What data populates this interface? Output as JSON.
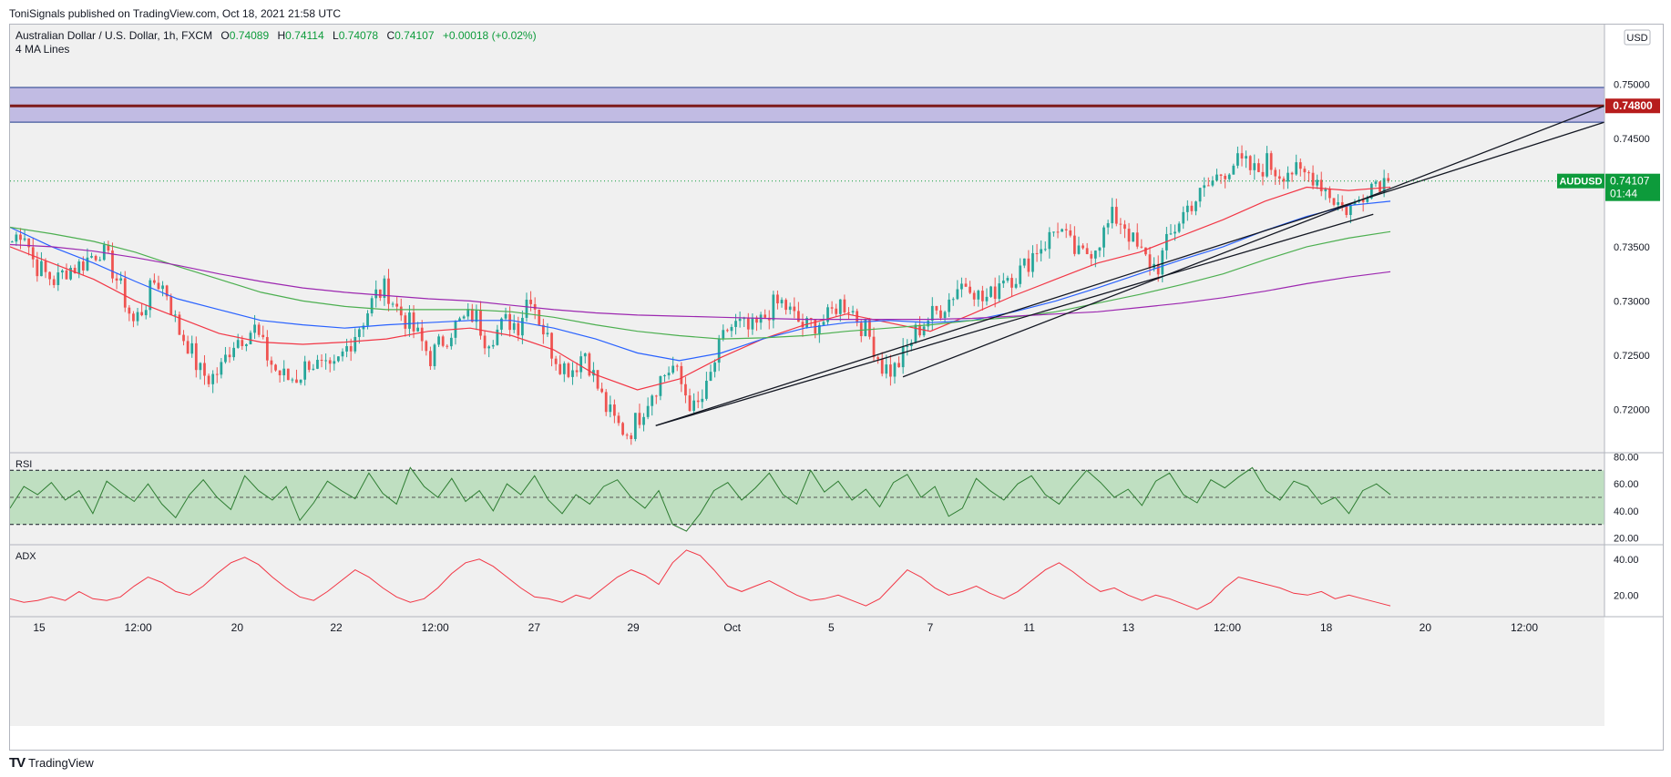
{
  "header": {
    "publisher": "ToniSignals published on TradingView.com, Oct 18, 2021 21:58 UTC"
  },
  "legend": {
    "symbol": "Australian Dollar / U.S. Dollar, 1h, FXCM",
    "open_label": "O",
    "open": "0.74089",
    "high_label": "H",
    "high": "0.74114",
    "low_label": "L",
    "low": "0.74078",
    "close_label": "C",
    "close": "0.74107",
    "change": "+0.00018 (+0.02%)",
    "indicator": "4 MA Lines"
  },
  "currency_label": "USD",
  "price_badge": {
    "ticker": "AUDUSD",
    "price": "0.74107",
    "countdown": "01:44",
    "color": "#0d9b3b"
  },
  "level_badge": {
    "price": "0.74800",
    "color": "#b71c1c"
  },
  "footer": {
    "brand": "TradingView",
    "logo_icon": "tradingview-logo-icon"
  },
  "colors": {
    "up": "#26a69a",
    "down": "#ef5350",
    "ma_red": "#f23645",
    "ma_blue": "#2962ff",
    "ma_green": "#4caf50",
    "ma_purple": "#9c27b0",
    "rsi": "#2e7d32",
    "adx": "#f23645",
    "zone_fill": "#b9b2e0",
    "zone_line": "#7e1b1b"
  },
  "chart_data": [
    {
      "type": "candlestick",
      "title": "Australian Dollar / U.S. Dollar, 1h, FXCM",
      "y_ticks": [
        "0.75000",
        "0.74500",
        "0.74000",
        "0.73500",
        "0.73000",
        "0.72500",
        "0.72000"
      ],
      "ylim": [
        0.716,
        0.7555
      ],
      "x_tick_labels": [
        "15",
        "12:00",
        "20",
        "22",
        "12:00",
        "27",
        "29",
        "Oct",
        "5",
        "7",
        "11",
        "13",
        "12:00",
        "18",
        "20",
        "12:00"
      ],
      "price_path": [
        [
          0.7355,
          0.7368,
          0.7335,
          0.7325,
          0.7318,
          0.733,
          0.7332,
          0.734,
          0.7348,
          0.7332,
          0.7308,
          0.728,
          0.7295,
          0.732,
          0.731,
          0.7275,
          0.726,
          0.7235,
          0.7228,
          0.7238,
          0.7262,
          0.7268,
          0.7275,
          0.7252,
          0.7235,
          0.7228
        ],
        [
          0.723,
          0.7245,
          0.7238,
          0.7232,
          0.725,
          0.7268,
          0.7285,
          0.7305,
          0.7312,
          0.7292,
          0.728,
          0.7265,
          0.7248,
          0.7262,
          0.7275,
          0.7282,
          0.7288,
          0.7265,
          0.7272,
          0.7282,
          0.7278,
          0.731,
          0.728,
          0.7255,
          0.724,
          0.7238
        ],
        [
          0.7255,
          0.7225,
          0.72,
          0.7185,
          0.7178,
          0.7195,
          0.7215,
          0.723,
          0.724,
          0.7218,
          0.7198,
          0.7215,
          0.725,
          0.7275,
          0.7278,
          0.7272,
          0.728,
          0.7295,
          0.7298,
          0.7285,
          0.7275,
          0.728,
          0.7282,
          0.7298,
          0.7296,
          0.728
        ],
        [
          0.7265,
          0.724,
          0.7235,
          0.725,
          0.727,
          0.7282,
          0.729,
          0.73,
          0.7315,
          0.7318,
          0.73,
          0.7305,
          0.7325,
          0.7322,
          0.7332,
          0.7348,
          0.7355,
          0.737,
          0.7352,
          0.734,
          0.7348,
          0.736,
          0.7378,
          0.7372,
          0.735,
          0.7338
        ],
        [
          0.733,
          0.7355,
          0.7375,
          0.739,
          0.7398,
          0.741,
          0.742,
          0.7428,
          0.7425,
          0.7418,
          0.7428,
          0.7418,
          0.7422,
          0.7415,
          0.7418,
          0.7408,
          0.7395,
          0.7385,
          0.7388,
          0.7405,
          0.7412,
          0.741
        ]
      ],
      "moving_averages": [
        {
          "name": "",
          "color": "#f23645",
          "values": [
            0.735,
            0.7335,
            0.732,
            0.73,
            0.7285,
            0.727,
            0.7262,
            0.726,
            0.7262,
            0.7265,
            0.7272,
            0.7275,
            0.7268,
            0.7255,
            0.7232,
            0.7218,
            0.7228,
            0.7248,
            0.7265,
            0.7278,
            0.7288,
            0.728,
            0.7272,
            0.7288,
            0.7305,
            0.732,
            0.7335,
            0.7345,
            0.736,
            0.7375,
            0.7392,
            0.7405,
            0.7402,
            0.7405
          ]
        },
        {
          "name": "",
          "color": "#2962ff",
          "values": [
            0.7368,
            0.735,
            0.7335,
            0.7318,
            0.7302,
            0.7292,
            0.7282,
            0.7278,
            0.7275,
            0.7278,
            0.728,
            0.7282,
            0.7282,
            0.7275,
            0.7265,
            0.7252,
            0.7245,
            0.7252,
            0.7265,
            0.7275,
            0.728,
            0.7282,
            0.728,
            0.7282,
            0.729,
            0.73,
            0.7312,
            0.7325,
            0.7338,
            0.735,
            0.7365,
            0.7378,
            0.7388,
            0.7392
          ]
        },
        {
          "name": "",
          "color": "#4caf50",
          "values": [
            0.7368,
            0.7362,
            0.7355,
            0.7345,
            0.7332,
            0.732,
            0.7308,
            0.73,
            0.7295,
            0.7292,
            0.7292,
            0.7292,
            0.729,
            0.7285,
            0.7278,
            0.7272,
            0.7268,
            0.7265,
            0.7266,
            0.7268,
            0.7272,
            0.7275,
            0.7278,
            0.7282,
            0.7285,
            0.729,
            0.7298,
            0.7306,
            0.7315,
            0.7325,
            0.7338,
            0.735,
            0.7358,
            0.7364
          ]
        },
        {
          "name": "",
          "color": "#9c27b0",
          "values": [
            0.7352,
            0.735,
            0.7346,
            0.734,
            0.7333,
            0.7325,
            0.7318,
            0.7312,
            0.7308,
            0.7305,
            0.7302,
            0.73,
            0.7296,
            0.7292,
            0.7289,
            0.7287,
            0.7286,
            0.7285,
            0.7284,
            0.7283,
            0.7283,
            0.7283,
            0.7283,
            0.7284,
            0.7286,
            0.7288,
            0.729,
            0.7294,
            0.7298,
            0.7303,
            0.7309,
            0.7316,
            0.7322,
            0.7327
          ]
        }
      ],
      "resistance_zone": [
        0.7465,
        0.7497
      ],
      "horizontal_level": 0.748,
      "last_price": 0.74107,
      "trendlines": [
        {
          "from": [
            0,
            0.7185
          ],
          "to": [
            1,
            0.7465
          ]
        },
        {
          "from": [
            0,
            0.723
          ],
          "to": [
            1,
            0.748
          ]
        },
        {
          "from": [
            0,
            0.7185
          ],
          "to": [
            1,
            0.738
          ]
        }
      ],
      "grid": false,
      "legend": "top-left"
    },
    {
      "type": "line",
      "title": "RSI",
      "y_ticks": [
        "80.00",
        "60.00",
        "40.00",
        "20.00"
      ],
      "ylim": [
        15,
        83
      ],
      "bands": [
        30,
        70
      ],
      "midline": 50,
      "values": [
        42,
        58,
        52,
        61,
        48,
        55,
        38,
        62,
        54,
        47,
        60,
        45,
        35,
        52,
        63,
        50,
        41,
        66,
        55,
        48,
        58,
        33,
        46,
        62,
        55,
        49,
        68,
        53,
        45,
        72,
        58,
        50,
        64,
        47,
        55,
        40,
        60,
        52,
        66,
        48,
        38,
        52,
        45,
        58,
        63,
        50,
        42,
        55,
        30,
        25,
        38,
        55,
        61,
        48,
        57,
        68,
        52,
        45,
        70,
        54,
        62,
        48,
        56,
        43,
        61,
        67,
        50,
        58,
        36,
        42,
        64,
        55,
        48,
        60,
        66,
        52,
        45,
        58,
        70,
        61,
        50,
        56,
        44,
        62,
        68,
        52,
        46,
        63,
        57,
        65,
        72,
        55,
        48,
        62,
        58,
        45,
        50,
        38,
        55,
        60,
        52
      ]
    },
    {
      "type": "line",
      "title": "ADX",
      "y_ticks": [
        "40.00",
        "20.00"
      ],
      "ylim": [
        8,
        48
      ],
      "values": [
        18,
        16,
        17,
        19,
        17,
        22,
        18,
        17,
        19,
        25,
        30,
        27,
        22,
        20,
        25,
        32,
        38,
        41,
        37,
        30,
        24,
        19,
        17,
        22,
        28,
        34,
        30,
        24,
        19,
        16,
        18,
        24,
        32,
        38,
        40,
        36,
        30,
        24,
        19,
        18,
        16,
        20,
        18,
        24,
        30,
        34,
        31,
        26,
        38,
        45,
        42,
        34,
        25,
        22,
        25,
        28,
        24,
        20,
        17,
        18,
        20,
        17,
        14,
        18,
        26,
        34,
        30,
        24,
        20,
        22,
        25,
        21,
        18,
        22,
        28,
        34,
        38,
        33,
        27,
        22,
        24,
        20,
        17,
        20,
        18,
        15,
        12,
        16,
        24,
        30,
        28,
        26,
        24,
        21,
        20,
        22,
        18,
        20,
        18,
        16,
        14
      ]
    }
  ]
}
